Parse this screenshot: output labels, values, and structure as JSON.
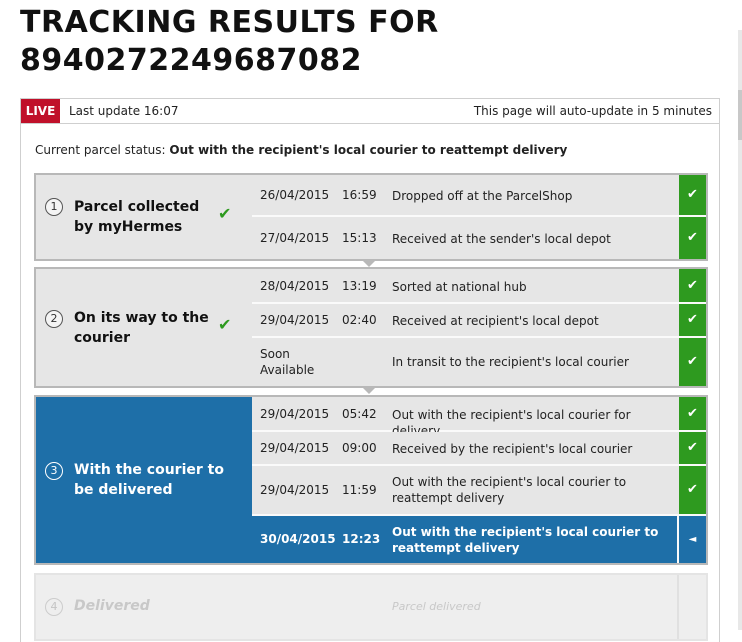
{
  "header": {
    "title_line1": "TRACKING RESULTS FOR",
    "title_line2": "8940272249687082"
  },
  "info_bar": {
    "live": "LIVE",
    "last_update": "Last update 16:07",
    "auto_update": "This page will auto-update in 5 minutes"
  },
  "status": {
    "label": "Current parcel status:",
    "value": "Out with the recipient's local courier to reattempt delivery"
  },
  "icons": {
    "check": "check-icon",
    "current": "triangle-left-icon"
  },
  "colors": {
    "accent_blue": "#1e6fa8",
    "live_red": "#c0102a",
    "done_green": "#2e9a1f"
  },
  "stages": [
    {
      "number": "1",
      "name": "Parcel collected by myHermes",
      "done_mark": "✔",
      "events": [
        {
          "date": "26/04/2015",
          "time": "16:59",
          "desc": "Dropped off at the ParcelShop",
          "mark": "✔"
        },
        {
          "date": "27/04/2015",
          "time": "15:13",
          "desc": "Received at the sender's local depot",
          "mark": "✔"
        }
      ]
    },
    {
      "number": "2",
      "name": "On its way to the courier",
      "done_mark": "✔",
      "events": [
        {
          "date": "28/04/2015",
          "time": "13:19",
          "desc": "Sorted at national hub",
          "mark": "✔"
        },
        {
          "date": "29/04/2015",
          "time": "02:40",
          "desc": "Received at recipient's local depot",
          "mark": "✔"
        },
        {
          "date": "Soon Available",
          "time": "",
          "desc": "In transit to the recipient's local courier",
          "mark": "✔"
        }
      ]
    },
    {
      "number": "3",
      "name": "With the courier to be delivered",
      "events": [
        {
          "date": "29/04/2015",
          "time": "05:42",
          "desc": "Out with the recipient's local courier for delivery",
          "mark": "✔"
        },
        {
          "date": "29/04/2015",
          "time": "09:00",
          "desc": "Received by the recipient's local courier",
          "mark": "✔"
        },
        {
          "date": "29/04/2015",
          "time": "11:59",
          "desc": "Out with the recipient's local courier to reattempt delivery",
          "mark": "✔"
        },
        {
          "date": "30/04/2015",
          "time": "12:23",
          "desc": "Out with the recipient's local courier to reattempt delivery",
          "mark": "◄"
        }
      ]
    },
    {
      "number": "4",
      "name": "Delivered",
      "events": [
        {
          "date": "",
          "time": "",
          "desc": "Parcel delivered",
          "mark": ""
        }
      ]
    }
  ]
}
